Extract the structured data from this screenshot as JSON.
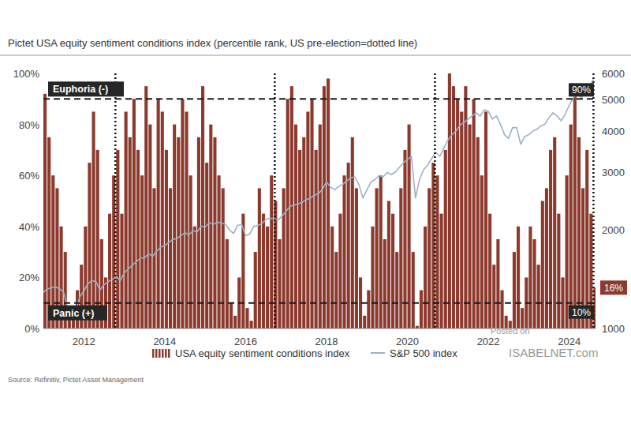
{
  "chart_data": [
    {
      "type": "bar",
      "title": "Pictet USA equity sentiment conditions index (percentile rank, US pre-election=dotted line)",
      "source": "Source: Refinitiv, Pictet Asset Management",
      "watermark": [
        "Posted on",
        "ISABELNET.com"
      ],
      "x": [
        2011.0,
        2011.1,
        2011.2,
        2011.3,
        2011.4,
        2011.5,
        2011.6,
        2011.7,
        2011.8,
        2011.9,
        2012.0,
        2012.1,
        2012.2,
        2012.3,
        2012.4,
        2012.5,
        2012.6,
        2012.7,
        2012.8,
        2012.9,
        2013.0,
        2013.1,
        2013.2,
        2013.3,
        2013.4,
        2013.5,
        2013.6,
        2013.7,
        2013.8,
        2013.9,
        2014.0,
        2014.1,
        2014.2,
        2014.3,
        2014.4,
        2014.5,
        2014.6,
        2014.7,
        2014.8,
        2014.9,
        2015.0,
        2015.1,
        2015.2,
        2015.3,
        2015.4,
        2015.5,
        2015.6,
        2015.7,
        2015.8,
        2015.9,
        2016.0,
        2016.1,
        2016.2,
        2016.3,
        2016.4,
        2016.5,
        2016.6,
        2016.7,
        2016.8,
        2016.9,
        2017.0,
        2017.1,
        2017.2,
        2017.3,
        2017.4,
        2017.5,
        2017.6,
        2017.7,
        2017.8,
        2017.9,
        2018.0,
        2018.1,
        2018.2,
        2018.3,
        2018.4,
        2018.5,
        2018.6,
        2018.7,
        2018.8,
        2018.9,
        2019.0,
        2019.1,
        2019.2,
        2019.3,
        2019.4,
        2019.5,
        2019.6,
        2019.7,
        2019.8,
        2019.9,
        2020.0,
        2020.1,
        2020.2,
        2020.3,
        2020.4,
        2020.5,
        2020.6,
        2020.7,
        2020.8,
        2020.9,
        2021.0,
        2021.1,
        2021.2,
        2021.3,
        2021.4,
        2021.5,
        2021.6,
        2021.7,
        2021.8,
        2021.9,
        2022.0,
        2022.1,
        2022.2,
        2022.3,
        2022.4,
        2022.5,
        2022.6,
        2022.7,
        2022.8,
        2022.9,
        2023.0,
        2023.1,
        2023.2,
        2023.3,
        2023.4,
        2023.5,
        2023.6,
        2023.7,
        2023.8,
        2023.9,
        2024.0,
        2024.1,
        2024.2,
        2024.3,
        2024.4,
        2024.5,
        2024.6
      ],
      "series": [
        {
          "name": "USA equity sentiment conditions index",
          "color": "#8c3a2e",
          "values": [
            92,
            75,
            60,
            55,
            40,
            30,
            5,
            8,
            15,
            25,
            40,
            65,
            85,
            70,
            35,
            20,
            45,
            60,
            70,
            45,
            85,
            75,
            90,
            70,
            60,
            95,
            80,
            55,
            90,
            85,
            70,
            55,
            80,
            75,
            90,
            85,
            60,
            40,
            75,
            95,
            65,
            80,
            75,
            60,
            55,
            35,
            10,
            5,
            20,
            45,
            8,
            3,
            30,
            55,
            45,
            40,
            60,
            50,
            35,
            55,
            90,
            95,
            80,
            70,
            75,
            85,
            90,
            70,
            80,
            95,
            98,
            40,
            30,
            45,
            60,
            65,
            75,
            55,
            20,
            5,
            15,
            40,
            55,
            60,
            35,
            50,
            45,
            30,
            55,
            70,
            80,
            30,
            1,
            15,
            40,
            55,
            65,
            60,
            45,
            70,
            100,
            95,
            90,
            85,
            95,
            80,
            90,
            75,
            60,
            85,
            45,
            25,
            35,
            15,
            5,
            3,
            30,
            40,
            8,
            20,
            40,
            35,
            25,
            50,
            55,
            70,
            75,
            45,
            20,
            60,
            80,
            95,
            75,
            55,
            70,
            45,
            16
          ]
        }
      ],
      "xlim": [
        2011.0,
        2024.65
      ],
      "xticks": [
        2012,
        2014,
        2016,
        2018,
        2020,
        2022,
        2024
      ],
      "ylim": [
        0,
        100
      ],
      "yticks": [
        {
          "value": 0,
          "label": "0%"
        },
        {
          "value": 20,
          "label": "20%"
        },
        {
          "value": 40,
          "label": "40%"
        },
        {
          "value": 60,
          "label": "60%"
        },
        {
          "value": 80,
          "label": "80%"
        },
        {
          "value": 100,
          "label": "100%"
        }
      ],
      "reference_lines": [
        {
          "value": 90,
          "label": "90%",
          "note": "Euphoria (-)"
        },
        {
          "value": 10,
          "label": "10%",
          "note": "Panic (+)"
        }
      ],
      "vlines": [
        2012.78,
        2016.72,
        2020.68,
        2024.6
      ],
      "last_value_label": {
        "value": 16,
        "label": "16%"
      },
      "grid": false
    },
    {
      "type": "line",
      "x": [
        2011.0,
        2011.1,
        2011.2,
        2011.3,
        2011.4,
        2011.5,
        2011.6,
        2011.7,
        2011.8,
        2011.9,
        2012.0,
        2012.1,
        2012.2,
        2012.3,
        2012.4,
        2012.5,
        2012.6,
        2012.7,
        2012.8,
        2012.9,
        2013.0,
        2013.1,
        2013.2,
        2013.3,
        2013.4,
        2013.5,
        2013.6,
        2013.7,
        2013.8,
        2013.9,
        2014.0,
        2014.1,
        2014.2,
        2014.3,
        2014.4,
        2014.5,
        2014.6,
        2014.7,
        2014.8,
        2014.9,
        2015.0,
        2015.1,
        2015.2,
        2015.3,
        2015.4,
        2015.5,
        2015.6,
        2015.7,
        2015.8,
        2015.9,
        2016.0,
        2016.1,
        2016.2,
        2016.3,
        2016.4,
        2016.5,
        2016.6,
        2016.7,
        2016.8,
        2016.9,
        2017.0,
        2017.1,
        2017.2,
        2017.3,
        2017.4,
        2017.5,
        2017.6,
        2017.7,
        2017.8,
        2017.9,
        2018.0,
        2018.1,
        2018.2,
        2018.3,
        2018.4,
        2018.5,
        2018.6,
        2018.7,
        2018.8,
        2018.9,
        2019.0,
        2019.1,
        2019.2,
        2019.3,
        2019.4,
        2019.5,
        2019.6,
        2019.7,
        2019.8,
        2019.9,
        2020.0,
        2020.1,
        2020.2,
        2020.3,
        2020.4,
        2020.5,
        2020.6,
        2020.7,
        2020.8,
        2020.9,
        2021.0,
        2021.1,
        2021.2,
        2021.3,
        2021.4,
        2021.5,
        2021.6,
        2021.7,
        2021.8,
        2021.9,
        2022.0,
        2022.1,
        2022.2,
        2022.3,
        2022.4,
        2022.5,
        2022.6,
        2022.7,
        2022.8,
        2022.9,
        2023.0,
        2023.1,
        2023.2,
        2023.3,
        2023.4,
        2023.5,
        2023.6,
        2023.7,
        2023.8,
        2023.9,
        2024.0,
        2024.1,
        2024.2,
        2024.3,
        2024.4,
        2024.5,
        2024.6
      ],
      "series": [
        {
          "name": "S&P 500 index",
          "color": "#9fb1c6",
          "values": [
            1290,
            1320,
            1330,
            1340,
            1320,
            1290,
            1150,
            1170,
            1130,
            1250,
            1300,
            1370,
            1400,
            1390,
            1310,
            1360,
            1390,
            1410,
            1440,
            1400,
            1480,
            1520,
            1560,
            1600,
            1640,
            1640,
            1690,
            1660,
            1720,
            1770,
            1790,
            1830,
            1870,
            1880,
            1920,
            1960,
            1930,
            1990,
            1970,
            2050,
            2040,
            2100,
            2080,
            2110,
            2100,
            2080,
            2000,
            1950,
            2060,
            2080,
            1920,
            1940,
            2050,
            2060,
            2090,
            2150,
            2170,
            2160,
            2140,
            2200,
            2280,
            2360,
            2380,
            2400,
            2430,
            2470,
            2500,
            2550,
            2580,
            2660,
            2800,
            2700,
            2650,
            2710,
            2750,
            2820,
            2880,
            2900,
            2750,
            2500,
            2650,
            2800,
            2850,
            2930,
            2900,
            2990,
            2950,
            3000,
            3100,
            3200,
            3280,
            3350,
            2500,
            2850,
            3050,
            3150,
            3300,
            3450,
            3350,
            3550,
            3750,
            3900,
            4000,
            4170,
            4250,
            4350,
            4450,
            4550,
            4450,
            4650,
            4600,
            4350,
            4450,
            4200,
            3900,
            3800,
            4100,
            4100,
            3650,
            3850,
            3900,
            4000,
            4050,
            4150,
            4200,
            4400,
            4550,
            4450,
            4300,
            4500,
            4800,
            5050,
            5200,
            5050,
            5300,
            5500,
            5750
          ]
        }
      ],
      "xlim": [
        2011.0,
        2024.65
      ],
      "ylim": [
        1000,
        6000
      ],
      "yticks": [
        1000,
        2000,
        3000,
        4000,
        5000,
        6000
      ],
      "log": "y"
    }
  ]
}
